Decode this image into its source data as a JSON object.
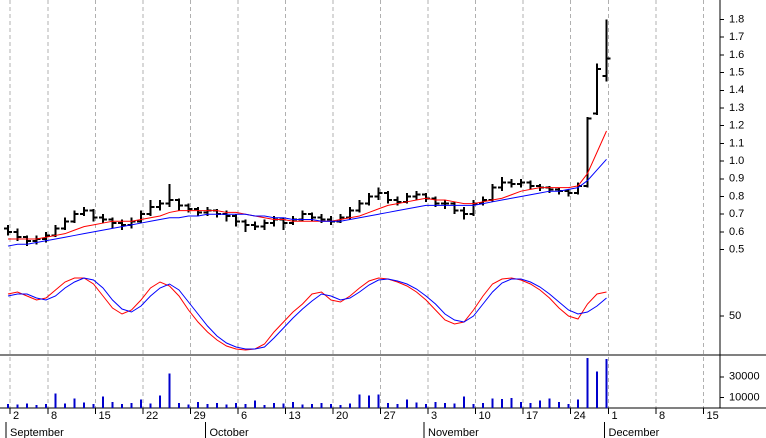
{
  "chart_data": [
    {
      "type": "ohlc",
      "categories": [
        "2",
        null,
        null,
        null,
        "8",
        null,
        null,
        null,
        null,
        "15",
        null,
        null,
        null,
        null,
        "22",
        null,
        null,
        null,
        null,
        "29",
        null,
        null,
        null,
        null,
        "6",
        null,
        null,
        null,
        null,
        "13",
        null,
        null,
        null,
        null,
        "20",
        null,
        null,
        null,
        null,
        "27",
        null,
        null,
        null,
        null,
        "3",
        null,
        null,
        null,
        null,
        "10",
        null,
        null,
        null,
        null,
        "17",
        null,
        null,
        null,
        null,
        "24",
        null,
        null,
        null,
        "1",
        null,
        null,
        null,
        null,
        "8",
        null,
        null,
        null,
        null,
        "15"
      ],
      "month_labels": [
        "September",
        null,
        null,
        null,
        null,
        null,
        null,
        null,
        null,
        null,
        null,
        null,
        null,
        null,
        null,
        null,
        null,
        null,
        null,
        null,
        null,
        "October",
        null,
        null,
        null,
        null,
        null,
        null,
        null,
        null,
        null,
        null,
        null,
        null,
        null,
        null,
        null,
        null,
        null,
        null,
        null,
        null,
        null,
        null,
        "November",
        null,
        null,
        null,
        null,
        null,
        null,
        null,
        null,
        null,
        null,
        null,
        null,
        null,
        null,
        null,
        null,
        null,
        null,
        "December",
        null,
        null,
        null,
        null,
        null,
        null,
        null,
        null,
        null,
        null
      ],
      "open": [
        0.62,
        0.6,
        0.57,
        0.55,
        0.56,
        0.58,
        0.62,
        0.66,
        0.7,
        0.72,
        0.68,
        0.67,
        0.65,
        0.64,
        0.66,
        0.7,
        0.74,
        0.76,
        0.78,
        0.75,
        0.73,
        0.71,
        0.72,
        0.7,
        0.69,
        0.66,
        0.64,
        0.63,
        0.65,
        0.67,
        0.65,
        0.67,
        0.7,
        0.68,
        0.67,
        0.66,
        0.68,
        0.72,
        0.76,
        0.8,
        0.82,
        0.78,
        0.77,
        0.8,
        0.81,
        0.79,
        0.76,
        0.76,
        0.72,
        0.7,
        0.76,
        0.78,
        0.85,
        0.88,
        0.87,
        0.88,
        0.86,
        0.85,
        0.84,
        0.83,
        0.82,
        0.86,
        1.27,
        1.48,
        null,
        null,
        null,
        null,
        null,
        null,
        null,
        null,
        null,
        null
      ],
      "high": [
        0.64,
        0.62,
        0.58,
        0.58,
        0.6,
        0.64,
        0.68,
        0.72,
        0.74,
        0.73,
        0.7,
        0.68,
        0.67,
        0.68,
        0.72,
        0.78,
        0.78,
        0.87,
        0.79,
        0.76,
        0.74,
        0.74,
        0.73,
        0.72,
        0.7,
        0.67,
        0.66,
        0.67,
        0.69,
        0.68,
        0.69,
        0.72,
        0.71,
        0.7,
        0.69,
        0.7,
        0.74,
        0.78,
        0.82,
        0.85,
        0.83,
        0.8,
        0.82,
        0.83,
        0.82,
        0.8,
        0.78,
        0.77,
        0.74,
        0.78,
        0.8,
        0.87,
        0.91,
        0.9,
        0.9,
        0.89,
        0.87,
        0.86,
        0.85,
        0.84,
        0.88,
        1.25,
        1.55,
        1.8,
        null,
        null,
        null,
        null,
        null,
        null,
        null,
        null,
        null,
        null
      ],
      "low": [
        0.58,
        0.55,
        0.52,
        0.53,
        0.54,
        0.57,
        0.61,
        0.65,
        0.69,
        0.66,
        0.65,
        0.62,
        0.61,
        0.62,
        0.65,
        0.69,
        0.72,
        0.74,
        0.72,
        0.71,
        0.69,
        0.69,
        0.68,
        0.66,
        0.63,
        0.6,
        0.61,
        0.61,
        0.63,
        0.61,
        0.64,
        0.66,
        0.66,
        0.65,
        0.64,
        0.65,
        0.67,
        0.71,
        0.75,
        0.78,
        0.76,
        0.75,
        0.76,
        0.78,
        0.77,
        0.74,
        0.73,
        0.7,
        0.67,
        0.69,
        0.75,
        0.77,
        0.83,
        0.85,
        0.85,
        0.84,
        0.83,
        0.82,
        0.81,
        0.8,
        0.81,
        0.85,
        1.26,
        1.45,
        null,
        null,
        null,
        null,
        null,
        null,
        null,
        null,
        null,
        null
      ],
      "close": [
        0.6,
        0.57,
        0.55,
        0.56,
        0.58,
        0.62,
        0.66,
        0.7,
        0.72,
        0.68,
        0.67,
        0.65,
        0.64,
        0.66,
        0.7,
        0.74,
        0.76,
        0.78,
        0.75,
        0.73,
        0.71,
        0.72,
        0.7,
        0.69,
        0.66,
        0.64,
        0.63,
        0.65,
        0.67,
        0.65,
        0.67,
        0.7,
        0.68,
        0.67,
        0.66,
        0.68,
        0.72,
        0.76,
        0.8,
        0.82,
        0.78,
        0.77,
        0.8,
        0.81,
        0.79,
        0.76,
        0.76,
        0.72,
        0.7,
        0.76,
        0.78,
        0.85,
        0.88,
        0.87,
        0.88,
        0.86,
        0.85,
        0.84,
        0.83,
        0.82,
        0.86,
        1.24,
        1.52,
        1.58,
        null,
        null,
        null,
        null,
        null,
        null,
        null,
        null,
        null,
        null
      ],
      "color": "#000000",
      "series": [
        {
          "color": "#ff0000",
          "values": [
            0.56,
            0.56,
            0.56,
            0.56,
            0.57,
            0.58,
            0.59,
            0.61,
            0.63,
            0.64,
            0.65,
            0.66,
            0.66,
            0.66,
            0.67,
            0.68,
            0.69,
            0.71,
            0.72,
            0.72,
            0.72,
            0.72,
            0.72,
            0.71,
            0.71,
            0.7,
            0.69,
            0.68,
            0.67,
            0.67,
            0.66,
            0.66,
            0.66,
            0.66,
            0.66,
            0.67,
            0.68,
            0.69,
            0.71,
            0.73,
            0.75,
            0.76,
            0.77,
            0.78,
            0.79,
            0.78,
            0.78,
            0.77,
            0.76,
            0.76,
            0.77,
            0.78,
            0.79,
            0.81,
            0.83,
            0.84,
            0.85,
            0.85,
            0.85,
            0.85,
            0.86,
            0.93,
            1.05,
            1.17,
            null,
            null,
            null,
            null,
            null,
            null,
            null,
            null,
            null,
            null
          ]
        },
        {
          "color": "#0000ff",
          "values": [
            0.52,
            0.53,
            0.53,
            0.54,
            0.55,
            0.56,
            0.57,
            0.58,
            0.59,
            0.6,
            0.61,
            0.62,
            0.63,
            0.64,
            0.65,
            0.66,
            0.67,
            0.68,
            0.68,
            0.69,
            0.69,
            0.7,
            0.7,
            0.7,
            0.7,
            0.7,
            0.69,
            0.69,
            0.68,
            0.68,
            0.67,
            0.67,
            0.67,
            0.66,
            0.66,
            0.66,
            0.67,
            0.68,
            0.69,
            0.7,
            0.71,
            0.72,
            0.73,
            0.74,
            0.75,
            0.75,
            0.75,
            0.75,
            0.75,
            0.75,
            0.76,
            0.77,
            0.78,
            0.79,
            0.8,
            0.81,
            0.82,
            0.83,
            0.83,
            0.84,
            0.85,
            0.89,
            0.95,
            1.01,
            null,
            null,
            null,
            null,
            null,
            null,
            null,
            null,
            null,
            null
          ]
        }
      ],
      "ylim": [
        0.43,
        1.91
      ],
      "yticks": [
        0.5,
        0.6,
        0.7,
        0.8,
        0.9,
        {
          "value": 1,
          "label": "1.0"
        },
        1.1,
        1.2,
        1.3,
        1.4,
        1.5,
        1.6,
        1.7,
        1.8
      ],
      "grid": true
    },
    {
      "type": "line",
      "series": [
        {
          "color": "#ff0000",
          "values": [
            72,
            74,
            70,
            66,
            68,
            76,
            84,
            88,
            88,
            82,
            70,
            58,
            52,
            56,
            66,
            78,
            84,
            80,
            70,
            56,
            44,
            34,
            26,
            20,
            17,
            16,
            17,
            22,
            34,
            44,
            54,
            62,
            72,
            74,
            66,
            64,
            70,
            78,
            85,
            88,
            87,
            84,
            80,
            74,
            66,
            56,
            46,
            42,
            44,
            56,
            70,
            82,
            87,
            88,
            86,
            82,
            76,
            68,
            58,
            50,
            47,
            62,
            72,
            74,
            null,
            null,
            null,
            null,
            null,
            null,
            null,
            null,
            null,
            null
          ]
        },
        {
          "color": "#0000ff",
          "values": [
            70,
            72,
            72,
            68,
            66,
            70,
            78,
            84,
            88,
            86,
            78,
            66,
            57,
            54,
            60,
            70,
            78,
            82,
            76,
            64,
            52,
            40,
            30,
            23,
            19,
            17,
            17,
            19,
            28,
            38,
            48,
            57,
            65,
            72,
            70,
            66,
            68,
            74,
            81,
            86,
            87,
            85,
            82,
            77,
            70,
            62,
            52,
            46,
            44,
            50,
            62,
            74,
            83,
            87,
            87,
            84,
            79,
            72,
            64,
            56,
            52,
            54,
            60,
            68,
            null,
            null,
            null,
            null,
            null,
            null,
            null,
            null,
            null,
            null
          ]
        }
      ],
      "ylim": [
        14,
        104
      ],
      "yticks": [
        50
      ]
    },
    {
      "type": "bar",
      "values": [
        4000,
        3500,
        4500,
        3000,
        4000,
        14000,
        4500,
        9000,
        5500,
        4000,
        11000,
        6000,
        4000,
        5000,
        8000,
        4500,
        12000,
        33000,
        5000,
        3500,
        6000,
        4000,
        5000,
        3500,
        5000,
        4000,
        7000,
        3000,
        5000,
        4500,
        6000,
        3500,
        4000,
        5000,
        4000,
        3000,
        4500,
        13000,
        12000,
        13000,
        5000,
        4000,
        8000,
        5500,
        4000,
        6000,
        5000,
        4500,
        11000,
        4000,
        5000,
        9000,
        8500,
        9500,
        6000,
        5000,
        7000,
        9000,
        6000,
        4000,
        8000,
        48000,
        35000,
        47000,
        null,
        null,
        null,
        null,
        null,
        null,
        null,
        null,
        null,
        null
      ],
      "color": "#0000cc",
      "ylim": [
        0,
        51000
      ],
      "yticks": [
        10000,
        30000
      ]
    }
  ]
}
